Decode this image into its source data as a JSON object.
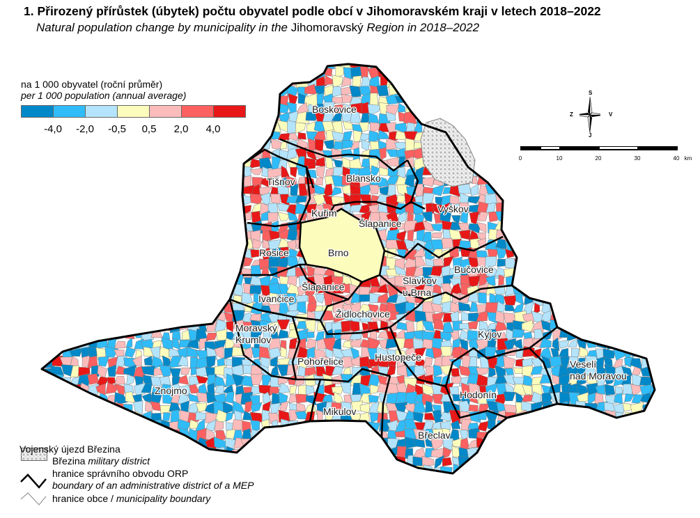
{
  "title": "1. Přirozený přírůstek (úbytek) počtu obyvatel podle obcí v Jihomoravském kraji v letech 2018–2022",
  "subtitle": {
    "pre": "Natural population change by municipality in the ",
    "region": "Jihomoravský",
    "post": " Region in 2018–2022"
  },
  "legend": {
    "title": "na 1 000 obyvatel (roční průměr)",
    "subtitle": "per 1 000 population (annual average)",
    "classes": [
      {
        "color": "#0088c8"
      },
      {
        "color": "#30bcf8"
      },
      {
        "color": "#b4e4fc"
      },
      {
        "color": "#fcfcbc"
      },
      {
        "color": "#fcbcbc"
      },
      {
        "color": "#fc6060"
      },
      {
        "color": "#e81818"
      }
    ],
    "breaks": [
      "-4,0",
      "-2,0",
      "-0,5",
      "0,5",
      "2,0",
      "4,0"
    ]
  },
  "compass": {
    "n": "S",
    "s": "J",
    "w": "Z",
    "e": "V"
  },
  "scalebar": {
    "ticks": [
      "0",
      "10",
      "20",
      "30",
      "40"
    ],
    "unit": "km"
  },
  "districts": [
    "Boskovice",
    "Blansko",
    "Tišnov",
    "Kuřim",
    "Šlapanice",
    "Vyškov",
    "Rosice",
    "Brno",
    "Šlapanice",
    "Bučovice",
    "Slavkov u Brna",
    "Ivančice",
    "Židlochovice",
    "Kyjov",
    "Moravský Krumlov",
    "Pohořelice",
    "Hustopeče",
    "Veselí nad Moravou",
    "Znojmo",
    "Hodonín",
    "Mikulov",
    "Břeclav"
  ],
  "bottom_legend": {
    "military_cz": "Vojenský újezd Březina",
    "military_en_pre": "Březina ",
    "military_en": "military district",
    "orp_cz": "hranice správního obvodu ORP",
    "orp_en": "boundary of an administrative district of a MEP",
    "muni_cz": "hranice obce / ",
    "muni_en": "municipality boundary"
  }
}
